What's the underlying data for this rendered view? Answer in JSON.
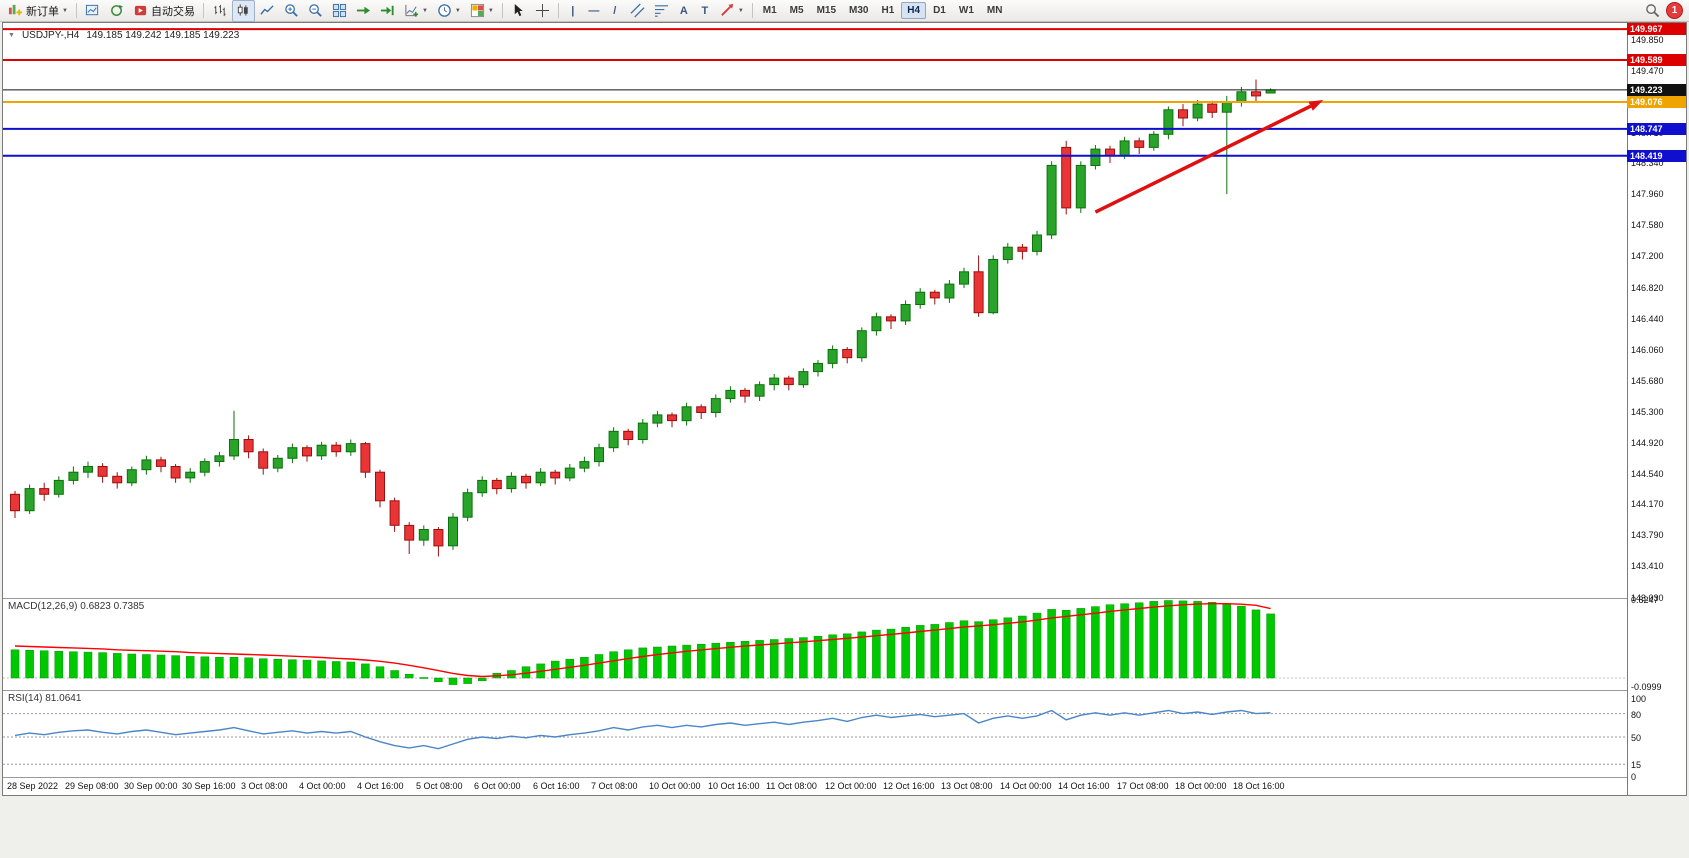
{
  "toolbar": {
    "new_order_label": "新订单",
    "autotrading_label": "自动交易",
    "timeframes": [
      "M1",
      "M5",
      "M15",
      "M30",
      "H1",
      "H4",
      "D1",
      "W1",
      "MN"
    ],
    "active_timeframe": "H4",
    "notification_count": "1",
    "glyphs": {
      "caret": "▼",
      "vline": "|",
      "hline": "—",
      "trendline": "/",
      "text": "A",
      "text_label": "T",
      "crosshair": "+"
    }
  },
  "chart": {
    "symbol_title": "USDJPY-,H4",
    "ohlc_text": "149.185 149.242 149.185 149.223",
    "axis_labels": [
      "149.850",
      "149.470",
      "149.090",
      "148.710",
      "148.340",
      "147.960",
      "147.580",
      "147.200",
      "146.820",
      "146.440",
      "146.060",
      "145.680",
      "145.300",
      "144.920",
      "144.540",
      "144.170",
      "143.790",
      "143.410",
      "143.030"
    ],
    "hlines": [
      {
        "label": "149.967",
        "value": 149.967,
        "color": "#dd0000",
        "width": 2
      },
      {
        "label": "149.589",
        "value": 149.589,
        "color": "#dd0000",
        "width": 2
      },
      {
        "label": "149.223",
        "value": 149.223,
        "color": "#111111",
        "width": 1
      },
      {
        "label": "149.076",
        "value": 149.076,
        "color": "#efa400",
        "width": 2
      },
      {
        "label": "148.747",
        "value": 148.747,
        "color": "#0f0fd0",
        "width": 2
      },
      {
        "label": "148.419",
        "value": 148.419,
        "color": "#0f0fd0",
        "width": 2
      }
    ],
    "trend_arrow": {
      "from_bar": 74,
      "from_price": 147.73,
      "to_bar": 89.6,
      "to_price": 149.1
    }
  },
  "colors": {
    "bull_candle": "#29a329",
    "bull_border": "#0b720b",
    "bear_candle": "#e93535",
    "bear_border": "#9a0f0f",
    "macd_histogram": "#00c800",
    "macd_signal": "#ff0000",
    "rsi_line": "#4a86c8",
    "trend_arrow": "#e01010"
  },
  "chart_data": {
    "type": "candlestick",
    "symbol": "USDJPY",
    "timeframe": "H4",
    "price_axis": {
      "min": 143.03,
      "max": 149.967
    },
    "bars_per_label": 4,
    "time_labels": [
      "28 Sep 2022",
      "29 Sep 08:00",
      "30 Sep 00:00",
      "30 Sep 16:00",
      "3 Oct 08:00",
      "4 Oct 00:00",
      "4 Oct 16:00",
      "5 Oct 08:00",
      "6 Oct 00:00",
      "6 Oct 16:00",
      "7 Oct 08:00",
      "10 Oct 00:00",
      "10 Oct 16:00",
      "11 Oct 08:00",
      "12 Oct 00:00",
      "12 Oct 16:00",
      "13 Oct 08:00",
      "14 Oct 00:00",
      "14 Oct 16:00",
      "17 Oct 08:00",
      "18 Oct 00:00",
      "18 Oct 16:00"
    ],
    "ohlc": [
      [
        144.28,
        144.32,
        143.99,
        144.08
      ],
      [
        144.08,
        144.4,
        144.04,
        144.35
      ],
      [
        144.35,
        144.42,
        144.2,
        144.28
      ],
      [
        144.28,
        144.5,
        144.24,
        144.45
      ],
      [
        144.45,
        144.62,
        144.4,
        144.55
      ],
      [
        144.55,
        144.68,
        144.48,
        144.62
      ],
      [
        144.62,
        144.66,
        144.42,
        144.5
      ],
      [
        144.5,
        144.55,
        144.35,
        144.42
      ],
      [
        144.42,
        144.62,
        144.38,
        144.58
      ],
      [
        144.58,
        144.75,
        144.52,
        144.7
      ],
      [
        144.7,
        144.74,
        144.55,
        144.62
      ],
      [
        144.62,
        144.65,
        144.42,
        144.48
      ],
      [
        144.48,
        144.6,
        144.42,
        144.55
      ],
      [
        144.55,
        144.72,
        144.5,
        144.68
      ],
      [
        144.68,
        144.8,
        144.62,
        144.75
      ],
      [
        144.75,
        145.3,
        144.7,
        144.95
      ],
      [
        144.95,
        145.0,
        144.72,
        144.8
      ],
      [
        144.8,
        144.84,
        144.52,
        144.6
      ],
      [
        144.6,
        144.76,
        144.55,
        144.72
      ],
      [
        144.72,
        144.9,
        144.66,
        144.85
      ],
      [
        144.85,
        144.88,
        144.68,
        144.75
      ],
      [
        144.75,
        144.92,
        144.7,
        144.88
      ],
      [
        144.88,
        144.92,
        144.74,
        144.8
      ],
      [
        144.8,
        144.95,
        144.75,
        144.9
      ],
      [
        144.9,
        144.92,
        144.48,
        144.55
      ],
      [
        144.55,
        144.58,
        144.12,
        144.2
      ],
      [
        144.2,
        144.24,
        143.82,
        143.9
      ],
      [
        143.9,
        143.94,
        143.55,
        143.72
      ],
      [
        143.72,
        143.9,
        143.65,
        143.85
      ],
      [
        143.85,
        143.88,
        143.52,
        143.65
      ],
      [
        143.65,
        144.05,
        143.6,
        144.0
      ],
      [
        144.0,
        144.35,
        143.95,
        144.3
      ],
      [
        144.3,
        144.5,
        144.25,
        144.45
      ],
      [
        144.45,
        144.48,
        144.28,
        144.35
      ],
      [
        144.35,
        144.55,
        144.3,
        144.5
      ],
      [
        144.5,
        144.53,
        144.35,
        144.42
      ],
      [
        144.42,
        144.6,
        144.38,
        144.55
      ],
      [
        144.55,
        144.58,
        144.4,
        144.48
      ],
      [
        144.48,
        144.65,
        144.44,
        144.6
      ],
      [
        144.6,
        144.74,
        144.55,
        144.68
      ],
      [
        144.68,
        144.9,
        144.62,
        144.85
      ],
      [
        144.85,
        145.1,
        144.8,
        145.05
      ],
      [
        145.05,
        145.08,
        144.88,
        144.95
      ],
      [
        144.95,
        145.2,
        144.9,
        145.15
      ],
      [
        145.15,
        145.3,
        145.1,
        145.25
      ],
      [
        145.25,
        145.28,
        145.1,
        145.18
      ],
      [
        145.18,
        145.4,
        145.12,
        145.35
      ],
      [
        145.35,
        145.38,
        145.2,
        145.28
      ],
      [
        145.28,
        145.5,
        145.22,
        145.45
      ],
      [
        145.45,
        145.6,
        145.4,
        145.55
      ],
      [
        145.55,
        145.58,
        145.4,
        145.48
      ],
      [
        145.48,
        145.66,
        145.42,
        145.62
      ],
      [
        145.62,
        145.75,
        145.55,
        145.7
      ],
      [
        145.7,
        145.73,
        145.55,
        145.62
      ],
      [
        145.62,
        145.82,
        145.58,
        145.78
      ],
      [
        145.78,
        145.92,
        145.72,
        145.88
      ],
      [
        145.88,
        146.1,
        145.82,
        146.05
      ],
      [
        146.05,
        146.08,
        145.88,
        145.95
      ],
      [
        145.95,
        146.32,
        145.9,
        146.28
      ],
      [
        146.28,
        146.5,
        146.22,
        146.45
      ],
      [
        146.45,
        146.48,
        146.3,
        146.4
      ],
      [
        146.4,
        146.65,
        146.35,
        146.6
      ],
      [
        146.6,
        146.8,
        146.55,
        146.75
      ],
      [
        146.75,
        146.78,
        146.6,
        146.68
      ],
      [
        146.68,
        146.9,
        146.62,
        146.85
      ],
      [
        146.85,
        147.05,
        146.8,
        147.0
      ],
      [
        147.0,
        147.2,
        146.45,
        146.5
      ],
      [
        146.5,
        147.2,
        146.48,
        147.15
      ],
      [
        147.15,
        147.35,
        147.1,
        147.3
      ],
      [
        147.3,
        147.34,
        147.15,
        147.25
      ],
      [
        147.25,
        147.5,
        147.2,
        147.45
      ],
      [
        147.45,
        148.35,
        147.4,
        148.3
      ],
      [
        148.52,
        148.6,
        147.7,
        147.78
      ],
      [
        147.78,
        148.35,
        147.72,
        148.3
      ],
      [
        148.3,
        148.55,
        148.25,
        148.5
      ],
      [
        148.5,
        148.54,
        148.33,
        148.42
      ],
      [
        148.42,
        148.65,
        148.38,
        148.6
      ],
      [
        148.6,
        148.64,
        148.44,
        148.52
      ],
      [
        148.52,
        148.72,
        148.48,
        148.68
      ],
      [
        148.68,
        149.02,
        148.62,
        148.98
      ],
      [
        148.98,
        149.05,
        148.78,
        148.88
      ],
      [
        148.88,
        149.1,
        148.84,
        149.05
      ],
      [
        149.05,
        149.09,
        148.88,
        148.95
      ],
      [
        148.95,
        149.15,
        147.95,
        149.08
      ],
      [
        149.08,
        149.26,
        149.02,
        149.2
      ],
      [
        149.2,
        149.35,
        149.08,
        149.15
      ],
      [
        149.185,
        149.242,
        149.185,
        149.223
      ]
    ],
    "macd": {
      "label": "MACD(12,26,9) 0.6823 0.7385",
      "axis_max": "0.8247",
      "axis_min": "-0.0999",
      "histogram": [
        0.3,
        0.295,
        0.29,
        0.285,
        0.28,
        0.275,
        0.27,
        0.262,
        0.255,
        0.25,
        0.245,
        0.238,
        0.23,
        0.225,
        0.22,
        0.22,
        0.215,
        0.205,
        0.2,
        0.195,
        0.19,
        0.182,
        0.175,
        0.17,
        0.15,
        0.12,
        0.08,
        0.04,
        0.005,
        -0.04,
        -0.07,
        -0.06,
        -0.03,
        0.05,
        0.08,
        0.12,
        0.15,
        0.18,
        0.2,
        0.22,
        0.25,
        0.28,
        0.3,
        0.32,
        0.33,
        0.34,
        0.35,
        0.36,
        0.37,
        0.38,
        0.39,
        0.4,
        0.41,
        0.42,
        0.43,
        0.445,
        0.46,
        0.47,
        0.49,
        0.51,
        0.52,
        0.54,
        0.56,
        0.57,
        0.59,
        0.61,
        0.6,
        0.62,
        0.64,
        0.66,
        0.69,
        0.73,
        0.72,
        0.74,
        0.76,
        0.78,
        0.79,
        0.8,
        0.815,
        0.8247,
        0.82,
        0.815,
        0.805,
        0.79,
        0.765,
        0.725,
        0.6823
      ],
      "signal": [
        0.34,
        0.335,
        0.33,
        0.325,
        0.32,
        0.315,
        0.31,
        0.3,
        0.295,
        0.29,
        0.285,
        0.28,
        0.27,
        0.265,
        0.26,
        0.255,
        0.25,
        0.245,
        0.238,
        0.232,
        0.225,
        0.218,
        0.21,
        0.202,
        0.192,
        0.178,
        0.158,
        0.135,
        0.109,
        0.079,
        0.049,
        0.027,
        0.016,
        0.023,
        0.034,
        0.051,
        0.071,
        0.093,
        0.114,
        0.135,
        0.158,
        0.183,
        0.206,
        0.229,
        0.249,
        0.267,
        0.284,
        0.299,
        0.313,
        0.327,
        0.339,
        0.351,
        0.363,
        0.374,
        0.385,
        0.397,
        0.41,
        0.422,
        0.435,
        0.45,
        0.464,
        0.479,
        0.495,
        0.51,
        0.526,
        0.543,
        0.554,
        0.567,
        0.582,
        0.597,
        0.616,
        0.639,
        0.655,
        0.672,
        0.689,
        0.708,
        0.724,
        0.739,
        0.754,
        0.768,
        0.779,
        0.786,
        0.79,
        0.79,
        0.785,
        0.773,
        0.7385
      ]
    },
    "rsi": {
      "label": "RSI(14) 81.0641",
      "levels": [
        "100",
        "80",
        "50",
        "15",
        "0"
      ],
      "values": [
        52,
        55,
        53,
        56,
        58,
        59,
        56,
        54,
        57,
        59,
        56,
        53,
        55,
        57,
        59,
        62,
        58,
        54,
        56,
        58,
        55,
        57,
        55,
        57,
        50,
        44,
        39,
        36,
        39,
        35,
        41,
        47,
        50,
        48,
        51,
        49,
        52,
        50,
        53,
        55,
        58,
        62,
        59,
        63,
        65,
        62,
        65,
        63,
        66,
        68,
        65,
        67,
        69,
        66,
        69,
        71,
        74,
        70,
        75,
        78,
        75,
        77,
        79,
        76,
        78,
        80,
        68,
        74,
        77,
        74,
        77,
        84,
        72,
        78,
        81,
        78,
        81,
        78,
        81,
        84,
        80,
        82,
        79,
        82,
        84,
        80,
        81.0641
      ]
    }
  }
}
